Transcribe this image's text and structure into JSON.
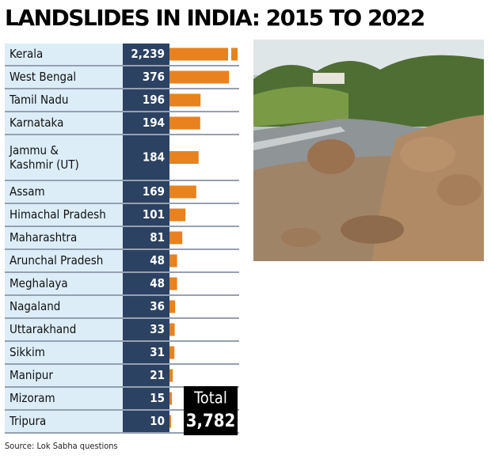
{
  "chart_data": {
    "type": "bar",
    "title": "LANDSLIDES IN INDIA: 2015 TO 2022",
    "categories": [
      "Kerala",
      "West Bengal",
      "Tamil Nadu",
      "Karnataka",
      "Jammu & Kashmir (UT)",
      "Assam",
      "Himachal Pradesh",
      "Maharashtra",
      "Arunchal Pradesh",
      "Meghalaya",
      "Nagaland",
      "Uttarakhand",
      "Sikkim",
      "Manipur",
      "Mizoram",
      "Tripura"
    ],
    "values": [
      2239,
      376,
      196,
      194,
      184,
      169,
      101,
      81,
      48,
      48,
      36,
      33,
      31,
      21,
      15,
      10
    ],
    "value_labels": [
      "2,239",
      "376",
      "196",
      "194",
      "184",
      "169",
      "101",
      "81",
      "48",
      "48",
      "36",
      "33",
      "31",
      "21",
      "15",
      "10"
    ],
    "color": "#e8821e",
    "total": {
      "label": "Total",
      "value": "3,782"
    },
    "source": "Source: Lok Sabha questions"
  }
}
